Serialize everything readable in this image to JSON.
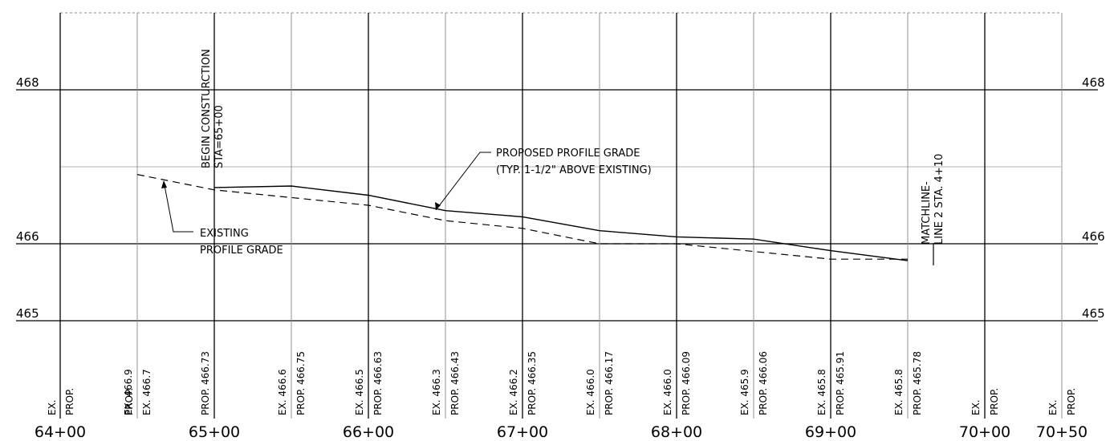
{
  "elevation_labels": [
    {
      "value": 468,
      "text": "468"
    },
    {
      "value": 466,
      "text": "466"
    },
    {
      "value": 465,
      "text": "465"
    }
  ],
  "stations": [
    "64+00",
    "65+00",
    "66+00",
    "67+00",
    "68+00",
    "69+00",
    "70+00",
    "70+50"
  ],
  "table_labels": [
    {
      "station": 64.5,
      "kind": "ex",
      "text": "EX."
    },
    {
      "station": 64.5,
      "kind": "prop",
      "text": "PROP."
    },
    {
      "station": 64.5,
      "kind": "ex",
      "text": "EX.  466.9"
    },
    {
      "station": 65.0,
      "kind": "prop",
      "text": "PROP."
    },
    {
      "station": 65.0,
      "kind": "ex",
      "text": "EX.  466.7"
    },
    {
      "station": 65.0,
      "kind": "prop",
      "text": "PROP. 466.73"
    },
    {
      "station": 65.5,
      "kind": "ex",
      "text": "EX.  466.6"
    },
    {
      "station": 65.5,
      "kind": "prop",
      "text": "PROP. 466.75"
    },
    {
      "station": 66.0,
      "kind": "ex",
      "text": "EX.  466.5"
    },
    {
      "station": 66.0,
      "kind": "prop",
      "text": "PROP. 466.63"
    },
    {
      "station": 66.5,
      "kind": "ex",
      "text": "EX.  466.3"
    },
    {
      "station": 66.5,
      "kind": "prop",
      "text": "PROP. 466.43"
    },
    {
      "station": 67.0,
      "kind": "ex",
      "text": "EX.  466.2"
    },
    {
      "station": 67.0,
      "kind": "prop",
      "text": "PROP. 466.35"
    },
    {
      "station": 67.5,
      "kind": "ex",
      "text": "EX.  466.0"
    },
    {
      "station": 67.5,
      "kind": "prop",
      "text": "PROP. 466.17"
    },
    {
      "station": 68.0,
      "kind": "ex",
      "text": "EX.  466.0"
    },
    {
      "station": 68.0,
      "kind": "prop",
      "text": "PROP. 466.09"
    },
    {
      "station": 68.5,
      "kind": "ex",
      "text": "EX.  465.9"
    },
    {
      "station": 68.5,
      "kind": "prop",
      "text": "PROP. 466.06"
    },
    {
      "station": 69.0,
      "kind": "ex",
      "text": "EX.  465.8"
    },
    {
      "station": 69.0,
      "kind": "prop",
      "text": "PROP. 465.91"
    },
    {
      "station": 69.5,
      "kind": "ex",
      "text": "EX.  465.8"
    },
    {
      "station": 69.5,
      "kind": "prop",
      "text": "PROP. 465.78"
    },
    {
      "station": 70.0,
      "kind": "ex",
      "text": "EX."
    },
    {
      "station": 70.0,
      "kind": "prop",
      "text": "PROP."
    },
    {
      "station": 70.5,
      "kind": "ex",
      "text": "EX."
    },
    {
      "station": 70.5,
      "kind": "prop",
      "text": "PROP."
    }
  ],
  "proposed_profile": [
    {
      "station": 65.0,
      "elev": 466.73
    },
    {
      "station": 65.5,
      "elev": 466.75
    },
    {
      "station": 66.0,
      "elev": 466.63
    },
    {
      "station": 66.5,
      "elev": 466.43
    },
    {
      "station": 67.0,
      "elev": 466.35
    },
    {
      "station": 67.5,
      "elev": 466.17
    },
    {
      "station": 68.0,
      "elev": 466.09
    },
    {
      "station": 68.5,
      "elev": 466.06
    },
    {
      "station": 69.0,
      "elev": 465.91
    },
    {
      "station": 69.5,
      "elev": 465.78
    }
  ],
  "existing_profile": [
    {
      "station": 64.5,
      "elev": 466.9
    },
    {
      "station": 65.0,
      "elev": 466.7
    },
    {
      "station": 65.5,
      "elev": 466.6
    },
    {
      "station": 66.0,
      "elev": 466.5
    },
    {
      "station": 66.5,
      "elev": 466.3
    },
    {
      "station": 67.0,
      "elev": 466.2
    },
    {
      "station": 67.5,
      "elev": 466.0
    },
    {
      "station": 68.0,
      "elev": 466.0
    },
    {
      "station": 68.5,
      "elev": 465.9
    },
    {
      "station": 69.0,
      "elev": 465.8
    },
    {
      "station": 69.5,
      "elev": 465.8
    }
  ],
  "annotations": {
    "begin_construction": [
      "BEGIN CONSTURCTION",
      "STA=65+00"
    ],
    "proposed_grade": [
      "PROPOSED PROFILE GRADE",
      "(TYP. 1-1/2\" ABOVE EXISTING)"
    ],
    "existing_grade": [
      "EXISTING",
      "PROFILE GRADE"
    ],
    "matchline": [
      "MATCHLINE-",
      "LINE 2 STA. 4+10"
    ]
  },
  "colors": {
    "line": "#000000",
    "grid": "#000000",
    "background": "#ffffff"
  }
}
